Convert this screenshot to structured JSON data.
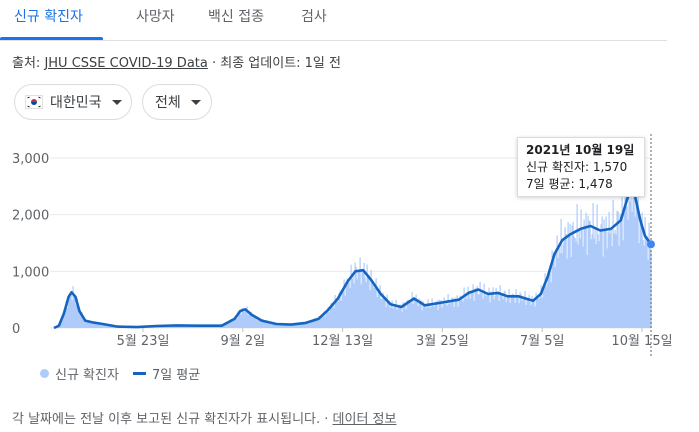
{
  "tabs": [
    {
      "label": "신규 확진자",
      "active": true
    },
    {
      "label": "사망자",
      "active": false
    },
    {
      "label": "백신 접종",
      "active": false
    },
    {
      "label": "검사",
      "active": false
    }
  ],
  "source": {
    "prefix": "출처: ",
    "link": "JHU CSSE COVID-19 Data",
    "suffix": " · 최종 업데이트: 1일 전"
  },
  "filters": {
    "country": {
      "flag_icon": "south-korea-flag-icon",
      "label": "대한민국"
    },
    "range": {
      "label": "전체"
    }
  },
  "tooltip": {
    "date": "2021년 10월 19일",
    "cases_line": "신규 확진자: 1,570",
    "avg_line": "7일 평균: 1,478"
  },
  "legend": {
    "daily": "신규 확진자",
    "avg": "7일 평균"
  },
  "footer": {
    "note": "각 날짜에는 전날 이후 보고된 신규 확진자가 표시됩니다.",
    "separator": " · ",
    "link": "데이터 정보"
  },
  "colors": {
    "accent": "#1a73e8",
    "line": "#1565c0",
    "bar": "#aecbfa"
  },
  "chart_data": {
    "type": "area",
    "title": "",
    "xlabel": "",
    "ylabel": "",
    "ylim": [
      0,
      3000
    ],
    "y_ticks": [
      "0",
      "1,000",
      "2,000",
      "3,000"
    ],
    "x_ticks": [
      "5월 23일",
      "9월 2일",
      "12월 13일",
      "3월 25일",
      "7월 5일",
      "10월 15일"
    ],
    "series": [
      {
        "name": "7일 평균",
        "points": [
          [
            "2020-02-15",
            0
          ],
          [
            "2020-02-20",
            40
          ],
          [
            "2020-02-25",
            250
          ],
          [
            "2020-03-01",
            550
          ],
          [
            "2020-03-04",
            630
          ],
          [
            "2020-03-08",
            550
          ],
          [
            "2020-03-12",
            300
          ],
          [
            "2020-03-18",
            130
          ],
          [
            "2020-03-25",
            100
          ],
          [
            "2020-04-05",
            70
          ],
          [
            "2020-04-20",
            25
          ],
          [
            "2020-05-10",
            15
          ],
          [
            "2020-05-30",
            35
          ],
          [
            "2020-06-20",
            45
          ],
          [
            "2020-07-10",
            40
          ],
          [
            "2020-08-05",
            40
          ],
          [
            "2020-08-18",
            160
          ],
          [
            "2020-08-24",
            300
          ],
          [
            "2020-08-29",
            330
          ],
          [
            "2020-09-05",
            230
          ],
          [
            "2020-09-15",
            130
          ],
          [
            "2020-09-30",
            70
          ],
          [
            "2020-10-15",
            60
          ],
          [
            "2020-10-30",
            90
          ],
          [
            "2020-11-12",
            160
          ],
          [
            "2020-11-22",
            320
          ],
          [
            "2020-12-02",
            520
          ],
          [
            "2020-12-12",
            820
          ],
          [
            "2020-12-20",
            1000
          ],
          [
            "2020-12-28",
            1020
          ],
          [
            "2021-01-05",
            850
          ],
          [
            "2021-01-15",
            600
          ],
          [
            "2021-01-25",
            420
          ],
          [
            "2021-02-05",
            370
          ],
          [
            "2021-02-18",
            520
          ],
          [
            "2021-03-01",
            400
          ],
          [
            "2021-03-15",
            440
          ],
          [
            "2021-04-05",
            500
          ],
          [
            "2021-04-15",
            620
          ],
          [
            "2021-04-25",
            680
          ],
          [
            "2021-05-05",
            600
          ],
          [
            "2021-05-15",
            620
          ],
          [
            "2021-05-25",
            560
          ],
          [
            "2021-06-05",
            560
          ],
          [
            "2021-06-20",
            480
          ],
          [
            "2021-06-28",
            600
          ],
          [
            "2021-07-05",
            900
          ],
          [
            "2021-07-12",
            1300
          ],
          [
            "2021-07-20",
            1550
          ],
          [
            "2021-07-28",
            1650
          ],
          [
            "2021-08-08",
            1750
          ],
          [
            "2021-08-18",
            1800
          ],
          [
            "2021-08-28",
            1720
          ],
          [
            "2021-09-08",
            1750
          ],
          [
            "2021-09-18",
            1900
          ],
          [
            "2021-09-25",
            2300
          ],
          [
            "2021-09-30",
            2500
          ],
          [
            "2021-10-03",
            2300
          ],
          [
            "2021-10-08",
            1900
          ],
          [
            "2021-10-13",
            1620
          ],
          [
            "2021-10-19",
            1478
          ]
        ]
      }
    ]
  }
}
